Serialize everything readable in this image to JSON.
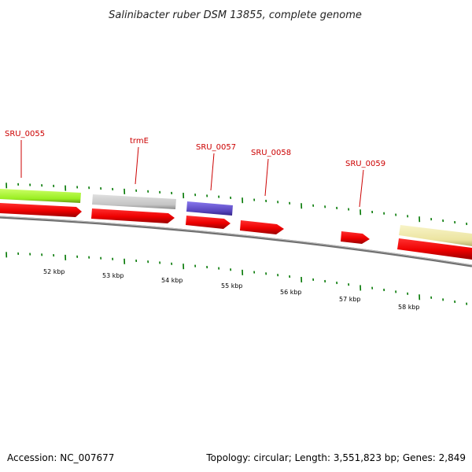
{
  "title": "Salinibacter ruber DSM 13855, complete genome",
  "footer": {
    "accession": "Accession: NC_007677",
    "summary": "Topology: circular; Length: 3,551,823 bp; Genes: 2,849"
  },
  "colors": {
    "cds": "#ee0000",
    "backbone": "#808080",
    "ticks": "#007700",
    "label": "#cc0000",
    "feature_green": "#aaff33",
    "feature_gray": "#c8c8c8",
    "feature_purple": "#6655cc",
    "feature_yellow": "#eee8a8"
  },
  "gene_labels": [
    {
      "name": "SRU_0055"
    },
    {
      "name": "trmE"
    },
    {
      "name": "SRU_0057"
    },
    {
      "name": "SRU_0058"
    },
    {
      "name": "SRU_0059"
    }
  ],
  "kbp_labels": [
    "52 kbp",
    "53 kbp",
    "54 kbp",
    "55 kbp",
    "56 kbp",
    "57 kbp",
    "58 kbp"
  ]
}
